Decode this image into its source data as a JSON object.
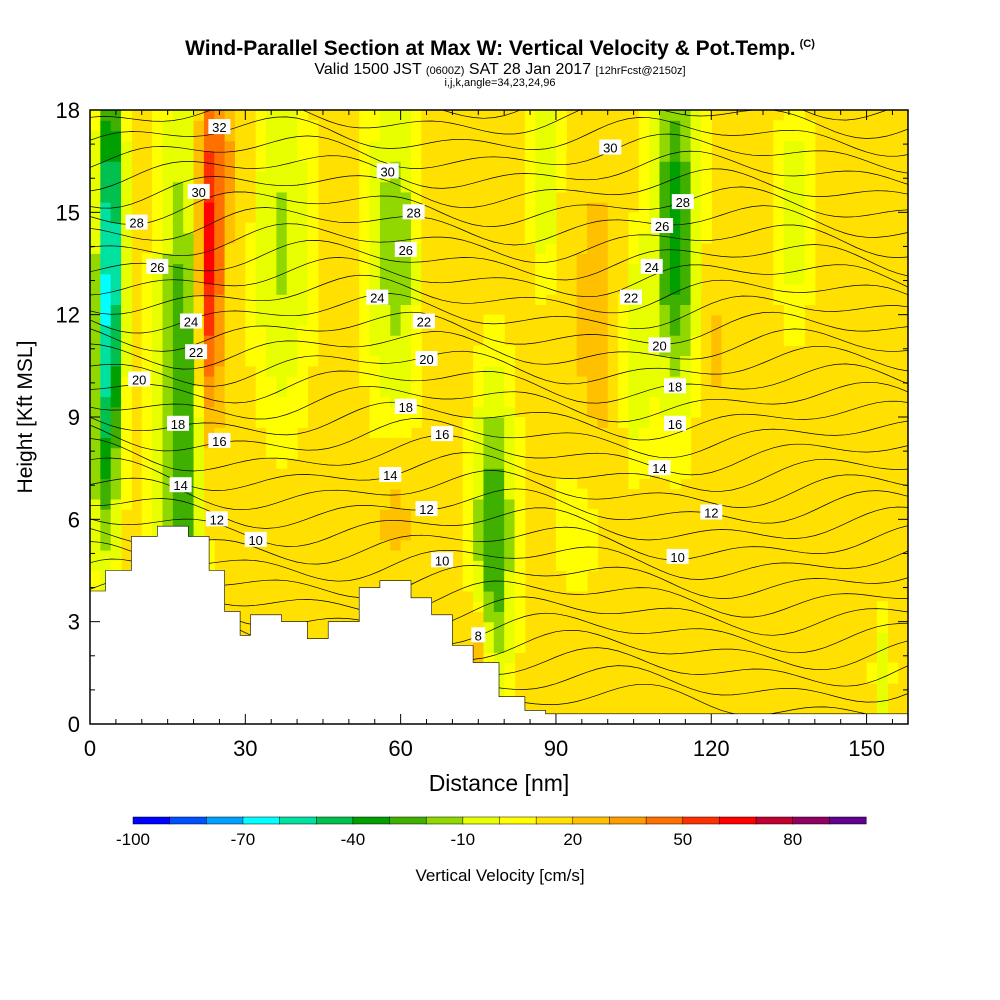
{
  "header": {
    "title": "Wind-Parallel Section at Max W: Vertical Velocity & Pot.Temp.",
    "title_tag": "(C)",
    "valid_prefix": "Valid 1500 JST",
    "valid_utc": "(0600Z)",
    "valid_date": "SAT 28 Jan 2017",
    "forecast": "[12hrFcst@2150z]",
    "section_params": "i,j,k,angle=34,23,24,96"
  },
  "chart_data": {
    "type": "heatmap",
    "xlabel": "Distance [nm]",
    "ylabel": "Height [Kft MSL]",
    "xlim": [
      0,
      158
    ],
    "ylim": [
      0,
      18
    ],
    "x_ticks": [
      0,
      30,
      60,
      90,
      120,
      150
    ],
    "y_ticks": [
      0,
      3,
      6,
      9,
      12,
      15,
      18
    ],
    "colorbar": {
      "label": "Vertical Velocity [cm/s]",
      "tick_labels": [
        -100,
        -70,
        -40,
        -10,
        20,
        50,
        80
      ],
      "bins": [
        -100,
        -90,
        -80,
        -70,
        -60,
        -50,
        -40,
        -30,
        -20,
        -10,
        0,
        10,
        20,
        30,
        40,
        50,
        60,
        70,
        80,
        90
      ],
      "colors": [
        "#0000ff",
        "#0050ff",
        "#00a0ff",
        "#00ffff",
        "#00e0a0",
        "#00c050",
        "#00a000",
        "#40b000",
        "#90d800",
        "#e8ff00",
        "#ffff00",
        "#ffe000",
        "#ffc000",
        "#ff9c00",
        "#ff7000",
        "#ff3000",
        "#ff0000",
        "#c00030",
        "#900060",
        "#600090"
      ]
    },
    "background_value_color": "#ffe000",
    "terrain": [
      [
        0,
        3.9
      ],
      [
        3,
        4.5
      ],
      [
        8,
        5.5
      ],
      [
        13,
        5.8
      ],
      [
        19,
        5.5
      ],
      [
        23,
        4.5
      ],
      [
        26,
        3.3
      ],
      [
        29,
        2.6
      ],
      [
        31,
        3.2
      ],
      [
        37,
        3
      ],
      [
        42,
        2.5
      ],
      [
        46,
        3
      ],
      [
        52,
        4
      ],
      [
        56,
        4.2
      ],
      [
        62,
        3.7
      ],
      [
        66,
        3.2
      ],
      [
        70,
        2.3
      ],
      [
        74,
        1.8
      ],
      [
        79,
        0.8
      ],
      [
        84,
        0.4
      ],
      [
        88,
        0.3
      ],
      [
        158,
        0.3
      ]
    ],
    "series": [
      {
        "name": "theta_contour_labels",
        "labels": [
          {
            "text": "32",
            "x": 25,
            "y": 17.5
          },
          {
            "text": "30",
            "x": 21,
            "y": 15.6
          },
          {
            "text": "28",
            "x": 9,
            "y": 14.7
          },
          {
            "text": "26",
            "x": 13,
            "y": 13.4
          },
          {
            "text": "24",
            "x": 19.5,
            "y": 11.8
          },
          {
            "text": "22",
            "x": 20.5,
            "y": 10.9
          },
          {
            "text": "20",
            "x": 9.5,
            "y": 10.1
          },
          {
            "text": "18",
            "x": 17,
            "y": 8.8
          },
          {
            "text": "16",
            "x": 25,
            "y": 8.3
          },
          {
            "text": "14",
            "x": 17.5,
            "y": 7.0
          },
          {
            "text": "12",
            "x": 24.5,
            "y": 6.0
          },
          {
            "text": "10",
            "x": 32,
            "y": 5.4
          },
          {
            "text": "30",
            "x": 57.5,
            "y": 16.2
          },
          {
            "text": "28",
            "x": 62.5,
            "y": 15.0
          },
          {
            "text": "26",
            "x": 61,
            "y": 13.9
          },
          {
            "text": "24",
            "x": 55.5,
            "y": 12.5
          },
          {
            "text": "22",
            "x": 64.5,
            "y": 11.8
          },
          {
            "text": "20",
            "x": 65,
            "y": 10.7
          },
          {
            "text": "18",
            "x": 61,
            "y": 9.3
          },
          {
            "text": "16",
            "x": 68,
            "y": 8.5
          },
          {
            "text": "14",
            "x": 58,
            "y": 7.3
          },
          {
            "text": "12",
            "x": 65,
            "y": 6.3
          },
          {
            "text": "10",
            "x": 68,
            "y": 4.8
          },
          {
            "text": "8",
            "x": 75,
            "y": 2.6
          },
          {
            "text": "30",
            "x": 100.5,
            "y": 16.9
          },
          {
            "text": "28",
            "x": 114.5,
            "y": 15.3
          },
          {
            "text": "26",
            "x": 110.5,
            "y": 14.6
          },
          {
            "text": "24",
            "x": 108.5,
            "y": 13.4
          },
          {
            "text": "22",
            "x": 104.5,
            "y": 12.5
          },
          {
            "text": "20",
            "x": 110,
            "y": 11.1
          },
          {
            "text": "18",
            "x": 113,
            "y": 9.9
          },
          {
            "text": "16",
            "x": 113,
            "y": 8.8
          },
          {
            "text": "14",
            "x": 110,
            "y": 7.5
          },
          {
            "text": "12",
            "x": 120,
            "y": 6.2
          },
          {
            "text": "10",
            "x": 113.5,
            "y": 4.9
          }
        ]
      }
    ]
  }
}
